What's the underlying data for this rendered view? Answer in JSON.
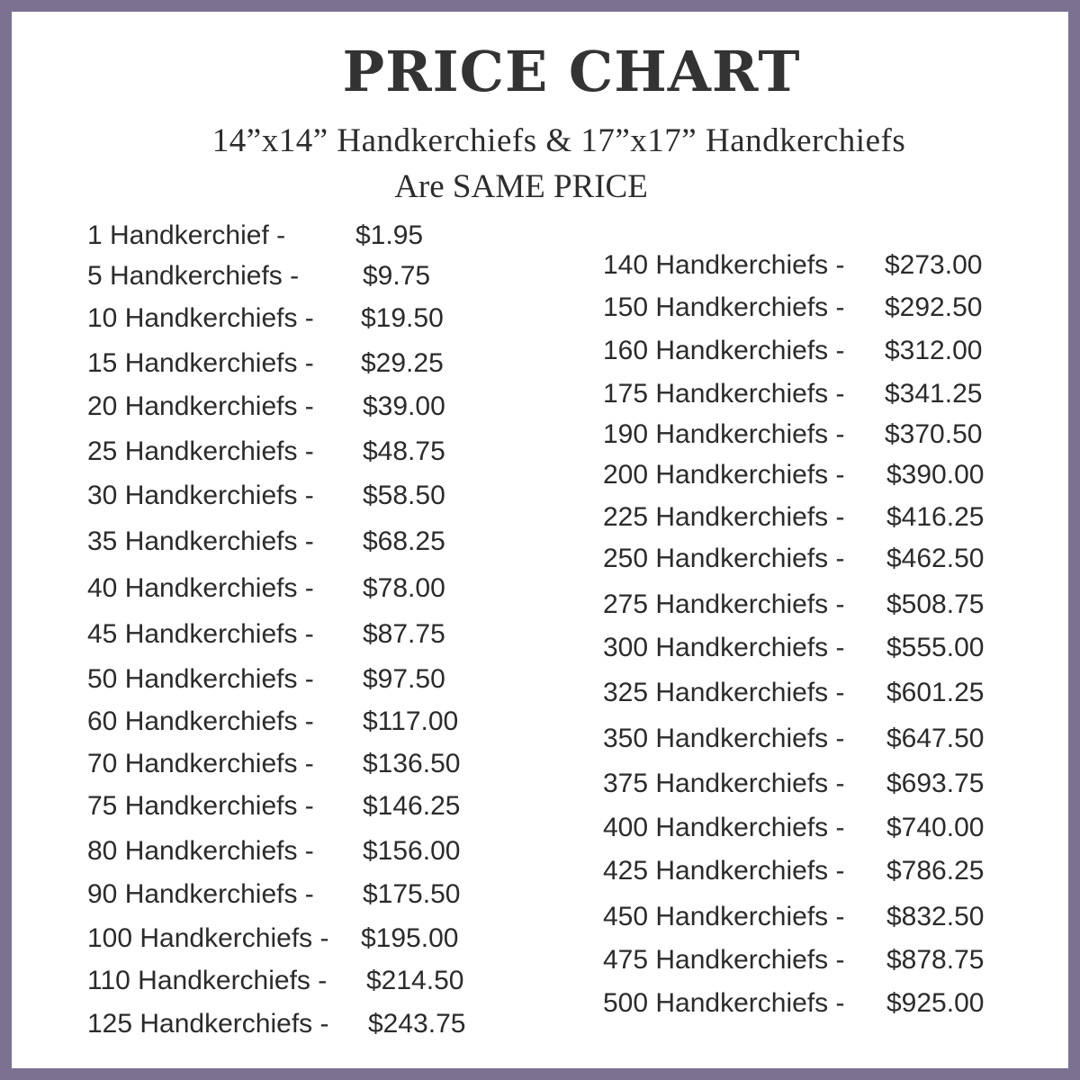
{
  "border_color": "#7b7190",
  "title": "PRICE CHART",
  "subtitle": "14”x14” Handkerchiefs & 17”x17” Handkerchiefs",
  "subtitle2": "Are SAME PRICE",
  "left_column": [
    {
      "qty": "1 Handkerchief -",
      "price": "$1.95"
    },
    {
      "qty": "5 Handkerchiefs -",
      "price": "$9.75"
    },
    {
      "qty": "10 Handkerchiefs -",
      "price": "$19.50"
    },
    {
      "qty": "15 Handkerchiefs -",
      "price": "$29.25"
    },
    {
      "qty": "20 Handkerchiefs -",
      "price": "$39.00"
    },
    {
      "qty": "25 Handkerchiefs -",
      "price": "$48.75"
    },
    {
      "qty": "30 Handkerchiefs -",
      "price": "$58.50"
    },
    {
      "qty": "35 Handkerchiefs -",
      "price": "$68.25"
    },
    {
      "qty": "40 Handkerchiefs -",
      "price": "$78.00"
    },
    {
      "qty": "45 Handkerchiefs -",
      "price": "$87.75"
    },
    {
      "qty": "50 Handkerchiefs -",
      "price": "$97.50"
    },
    {
      "qty": "60 Handkerchiefs -",
      "price": "$117.00"
    },
    {
      "qty": "70 Handkerchiefs -",
      "price": "$136.50"
    },
    {
      "qty": "75 Handkerchiefs -",
      "price": "$146.25"
    },
    {
      "qty": "80 Handkerchiefs -",
      "price": "$156.00"
    },
    {
      "qty": "90 Handkerchiefs -",
      "price": "$175.50"
    },
    {
      "qty": "100 Handkerchiefs -",
      "price": "$195.00"
    },
    {
      "qty": "110 Handkerchiefs -",
      "price": "$214.50"
    },
    {
      "qty": "125 Handkerchiefs -",
      "price": "$243.75"
    }
  ],
  "right_column": [
    {
      "qty": "140 Handkerchiefs -",
      "price": "$273.00"
    },
    {
      "qty": "150 Handkerchiefs -",
      "price": "$292.50"
    },
    {
      "qty": "160 Handkerchiefs -",
      "price": "$312.00"
    },
    {
      "qty": "175 Handkerchiefs -",
      "price": "$341.25"
    },
    {
      "qty": "190 Handkerchiefs -",
      "price": "$370.50"
    },
    {
      "qty": "200 Handkerchiefs -",
      "price": "$390.00"
    },
    {
      "qty": "225 Handkerchiefs -",
      "price": "$416.25"
    },
    {
      "qty": "250 Handkerchiefs -",
      "price": "$462.50"
    },
    {
      "qty": "275 Handkerchiefs -",
      "price": "$508.75"
    },
    {
      "qty": "300 Handkerchiefs -",
      "price": "$555.00"
    },
    {
      "qty": "325 Handkerchiefs -",
      "price": "$601.25"
    },
    {
      "qty": "350 Handkerchiefs -",
      "price": "$647.50"
    },
    {
      "qty": "375 Handkerchiefs -",
      "price": "$693.75"
    },
    {
      "qty": "400 Handkerchiefs -",
      "price": "$740.00"
    },
    {
      "qty": "425 Handkerchiefs -",
      "price": "$786.25"
    },
    {
      "qty": "450 Handkerchiefs -",
      "price": "$832.50"
    },
    {
      "qty": "475 Handkerchiefs -",
      "price": "$878.75"
    },
    {
      "qty": "500 Handkerchiefs -",
      "price": "$925.00"
    }
  ]
}
